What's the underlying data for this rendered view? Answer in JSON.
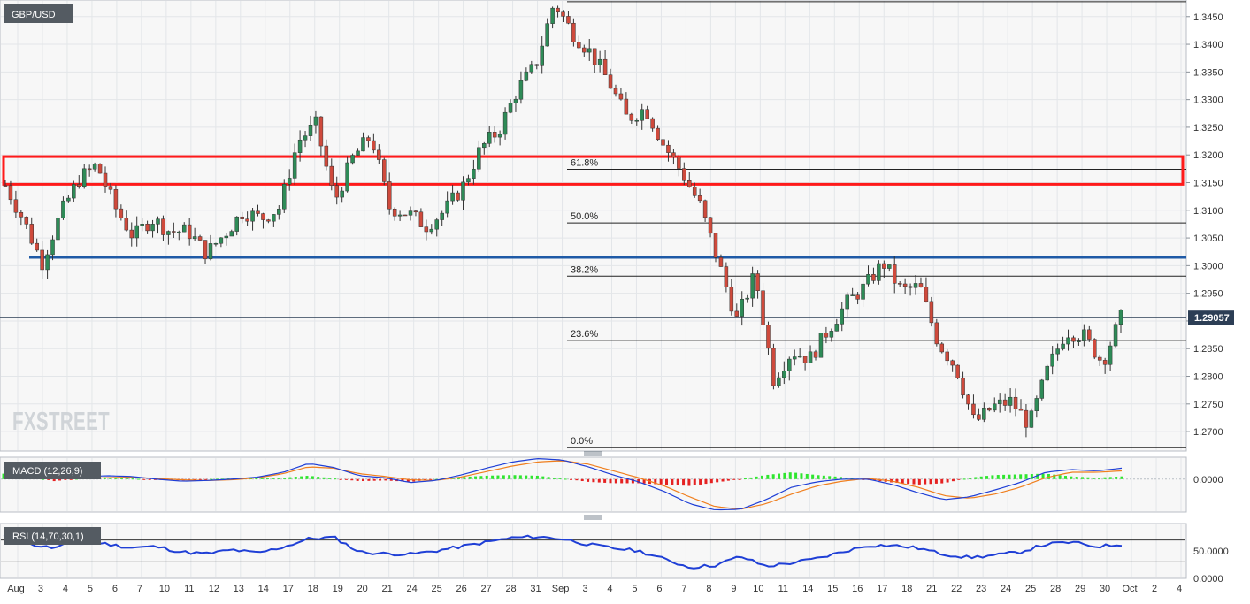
{
  "chart_data": [
    {
      "type": "candlestick",
      "panel": "price",
      "symbol": "GBP/USD",
      "last_price": "1.29057",
      "ylim": [
        1.2665,
        1.348
      ],
      "y_ticks": [
        1.27,
        1.275,
        1.28,
        1.285,
        1.29,
        1.295,
        1.3,
        1.305,
        1.31,
        1.315,
        1.32,
        1.325,
        1.33,
        1.335,
        1.34,
        1.345
      ],
      "y_tick_labels": [
        "1.2700",
        "1.2750",
        "1.2800",
        "1.2850",
        "1.2900",
        "1.2950",
        "1.3000",
        "1.3050",
        "1.3100",
        "1.3150",
        "1.3200",
        "1.3250",
        "1.3300",
        "1.3350",
        "1.3400",
        "1.3450"
      ],
      "x_labels": [
        "Aug",
        "3",
        "4",
        "5",
        "6",
        "7",
        "10",
        "11",
        "12",
        "13",
        "14",
        "17",
        "18",
        "19",
        "20",
        "21",
        "24",
        "25",
        "26",
        "27",
        "28",
        "31",
        "Sep",
        "3",
        "4",
        "5",
        "6",
        "7",
        "8",
        "9",
        "10",
        "11",
        "14",
        "15",
        "16",
        "17",
        "18",
        "21",
        "22",
        "23",
        "24",
        "25",
        "28",
        "29",
        "30",
        "Oct",
        "2",
        "4"
      ],
      "fibonacci": [
        {
          "label": "61.8%",
          "value": 1.3174
        },
        {
          "label": "50.0%",
          "value": 1.3077
        },
        {
          "label": "38.2%",
          "value": 1.2981
        },
        {
          "label": "23.6%",
          "value": 1.2865
        },
        {
          "label": "0.0%",
          "value": 1.2671
        }
      ],
      "fib_top_value": 1.3477,
      "current_price_value": 1.2906,
      "support_line_value": 1.3015,
      "resistance_zone": [
        1.3147,
        1.3197
      ],
      "close_path": [
        1.3145,
        1.3082,
        1.3005,
        1.3092,
        1.3155,
        1.3182,
        1.3105,
        1.3052,
        1.3085,
        1.3062,
        1.3062,
        1.3022,
        1.3058,
        1.3098,
        1.3085,
        1.3105,
        1.3225,
        1.3255,
        1.3115,
        1.3195,
        1.3235,
        1.3105,
        1.3095,
        1.3072,
        1.3098,
        1.3142,
        1.3212,
        1.3245,
        1.3318,
        1.3362,
        1.3475,
        1.3422,
        1.3385,
        1.3332,
        1.3265,
        1.3285,
        1.3218,
        1.3168,
        1.3108,
        1.3005,
        1.2902,
        1.2985,
        1.2795,
        1.2845,
        1.2832,
        1.2885,
        1.2932,
        1.2962,
        1.3005,
        1.2955,
        1.2962,
        1.2862,
        1.2815,
        1.2715,
        1.2745,
        1.2755,
        1.2712,
        1.2812,
        1.2882,
        1.2872,
        1.2825,
        1.2906
      ],
      "logo_text": "FXSTREET"
    },
    {
      "type": "macd",
      "panel": "macd",
      "label": "MACD (12,26,9)",
      "ylim": [
        -0.0048,
        0.0032
      ],
      "y_ticks": [
        0.0
      ],
      "y_tick_labels": [
        "0.0000"
      ],
      "macd_path": [
        0.0018,
        0.0012,
        0.0,
        0.0002,
        0.0005,
        0.0004,
        0.0,
        -0.0003,
        -0.0002,
        0.0,
        0.0003,
        0.001,
        0.0023,
        0.0017,
        0.0005,
        0.0002,
        -0.0005,
        -0.0002,
        0.0006,
        0.0016,
        0.0025,
        0.003,
        0.0028,
        0.0018,
        0.0006,
        -0.0004,
        -0.0018,
        -0.0036,
        -0.0045,
        -0.0044,
        -0.003,
        -0.0012,
        -0.0004,
        0.0,
        0.0,
        -0.0008,
        -0.002,
        -0.003,
        -0.0026,
        -0.0016,
        -0.0005,
        0.001,
        0.0014,
        0.0012,
        0.0016
      ],
      "signal_path": [
        0.001,
        0.0008,
        0.0003,
        0.0001,
        0.0002,
        0.0003,
        0.0001,
        -0.0001,
        -0.0002,
        -0.0001,
        0.0002,
        0.0008,
        0.0018,
        0.0016,
        0.0008,
        0.0004,
        -0.0001,
        -0.0002,
        0.0003,
        0.0011,
        0.0019,
        0.0025,
        0.0027,
        0.0022,
        0.0012,
        0.0002,
        -0.001,
        -0.0026,
        -0.004,
        -0.0044,
        -0.0036,
        -0.0022,
        -0.001,
        -0.0003,
        0.0001,
        -0.0003,
        -0.0012,
        -0.0024,
        -0.0028,
        -0.0022,
        -0.0012,
        0.0002,
        0.001,
        0.001,
        0.0012
      ]
    },
    {
      "type": "rsi",
      "panel": "rsi",
      "label": "RSI (14,70,30,1)",
      "ylim": [
        0,
        100
      ],
      "y_ticks": [
        0,
        50
      ],
      "y_tick_labels": [
        "0.0000",
        "50.0000"
      ],
      "levels": [
        70,
        30
      ],
      "rsi_path": [
        78,
        62,
        55,
        70,
        63,
        56,
        58,
        48,
        45,
        52,
        46,
        57,
        72,
        75,
        48,
        45,
        44,
        50,
        58,
        66,
        74,
        76,
        72,
        62,
        55,
        50,
        35,
        20,
        24,
        40,
        22,
        28,
        36,
        48,
        60,
        60,
        55,
        44,
        38,
        42,
        48,
        62,
        66,
        58,
        62
      ]
    }
  ]
}
